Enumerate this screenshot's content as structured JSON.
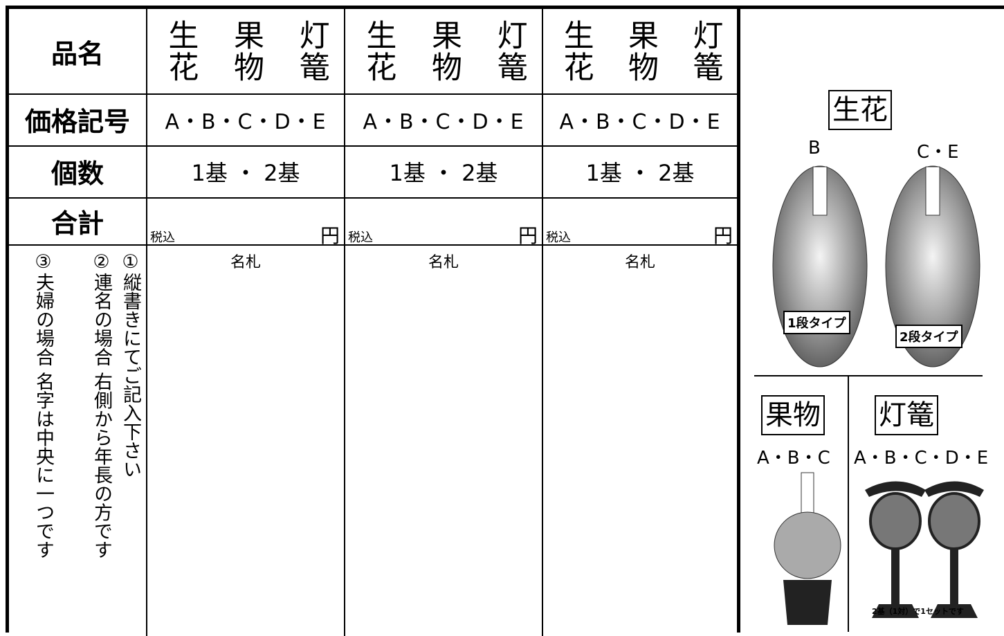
{
  "table": {
    "labels": {
      "item": "品名",
      "price": "価格記号",
      "count": "個数",
      "total": "合計"
    },
    "columns": [
      {
        "options": [
          "生花",
          "果物",
          "灯篭"
        ],
        "price": "A・B・C・D・E",
        "count": "1基 ・ 2基",
        "total_prefix": "税込",
        "total_unit": "円",
        "nameplate": "名札"
      },
      {
        "options": [
          "生花",
          "果物",
          "灯篭"
        ],
        "price": "A・B・C・D・E",
        "count": "1基 ・ 2基",
        "total_prefix": "税込",
        "total_unit": "円",
        "nameplate": "名札"
      },
      {
        "options": [
          "生花",
          "果物",
          "灯篭"
        ],
        "price": "A・B・C・D・E",
        "count": "1基 ・ 2基",
        "total_prefix": "税込",
        "total_unit": "円",
        "nameplate": "名札"
      }
    ],
    "instructions": [
      "①縦書きにてご記入下さい",
      "②連名の場合 右側から年長の方です",
      "③夫婦の場合 名字は中央に一つです"
    ]
  },
  "panel": {
    "flower": {
      "title": "生花",
      "left_code": "B",
      "right_code": "C・E",
      "left_type": "1段タイプ",
      "right_type": "2段タイプ"
    },
    "fruit": {
      "title": "果物",
      "codes": "A・B・C"
    },
    "lantern": {
      "title": "灯篭",
      "codes": "A・B・C・D・E",
      "note": "2基（1対）で1セットです"
    }
  }
}
